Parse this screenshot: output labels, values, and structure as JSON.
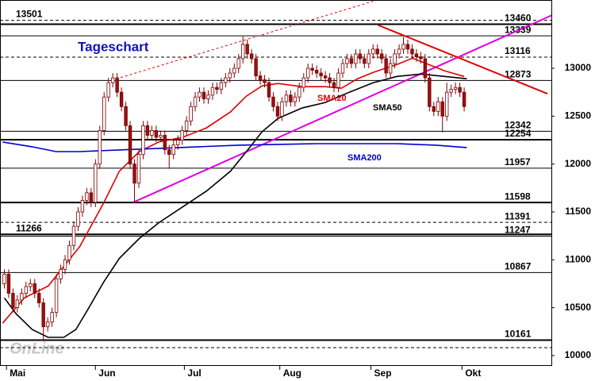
{
  "chart_data": {
    "type": "candlestick",
    "title": "Tageschart",
    "watermark": "OnLine",
    "xlim": [
      -1,
      126.1
    ],
    "xticks": [
      {
        "value": 0.5,
        "label": "Mai"
      },
      {
        "value": 21,
        "label": "Jun"
      },
      {
        "value": 41.5,
        "label": "Jul"
      },
      {
        "value": 63.5,
        "label": "Aug"
      },
      {
        "value": 84.5,
        "label": "Sep"
      },
      {
        "value": 105.5,
        "label": "Okt"
      }
    ],
    "ylim": [
      9900,
      13713
    ],
    "yticks": [
      10000,
      10500,
      11000,
      11500,
      12000,
      12500,
      13000
    ],
    "up_color": "#ffffff",
    "down_color": "#9b1010",
    "outline_color": "#7a0000",
    "open": [
      10750,
      10850,
      10650,
      10500,
      10580,
      10650,
      10720,
      10750,
      10650,
      10550,
      10300,
      10350,
      10450,
      10800,
      10900,
      11000,
      11150,
      11350,
      11500,
      11620,
      11700,
      11600,
      12000,
      12350,
      12700,
      12850,
      12900,
      12750,
      12600,
      12400,
      12000,
      11800,
      12100,
      12400,
      12300,
      12350,
      12280,
      12300,
      12150,
      12100,
      12200,
      12250,
      12350,
      12450,
      12600,
      12700,
      12750,
      12680,
      12720,
      12800,
      12780,
      12850,
      12900,
      12950,
      13000,
      13100,
      13250,
      13150,
      13100,
      12920,
      12880,
      12850,
      12700,
      12600,
      12500,
      12650,
      12720,
      12650,
      12700,
      12800,
      12900,
      13000,
      12980,
      12950,
      12920,
      12900,
      12850,
      12800,
      12950,
      13050,
      13100,
      13050,
      13150,
      13100,
      13050,
      13150,
      13200,
      13150,
      13100,
      12950,
      13050,
      13150,
      13200,
      13250,
      13200,
      13150,
      13120,
      13100,
      12900,
      12600,
      12550,
      12650,
      12500,
      12750,
      12780,
      12800,
      12750
    ],
    "high": [
      10900,
      10900,
      10700,
      10630,
      10700,
      10770,
      10800,
      10800,
      10700,
      10600,
      10400,
      10500,
      10850,
      10950,
      11050,
      11200,
      11400,
      11550,
      11670,
      11750,
      11750,
      12050,
      12400,
      12750,
      12900,
      12950,
      12950,
      12800,
      12650,
      12450,
      12050,
      12150,
      12450,
      12450,
      12400,
      12400,
      12350,
      12350,
      12200,
      12250,
      12300,
      12400,
      12500,
      12650,
      12750,
      12800,
      12800,
      12770,
      12850,
      12850,
      12900,
      12950,
      13000,
      13050,
      13150,
      13330,
      13300,
      13200,
      13150,
      12970,
      12930,
      12900,
      12750,
      12650,
      12700,
      12770,
      12770,
      12750,
      12850,
      12950,
      13050,
      13050,
      13030,
      13000,
      12970,
      12950,
      12900,
      13000,
      13100,
      13150,
      13150,
      13200,
      13200,
      13150,
      13200,
      13250,
      13250,
      13200,
      13150,
      13100,
      13200,
      13250,
      13330,
      13300,
      13250,
      13200,
      13170,
      13150,
      12950,
      12650,
      12700,
      12700,
      12850,
      12830,
      12850,
      12850,
      12800
    ],
    "low": [
      10700,
      10600,
      10450,
      10450,
      10530,
      10600,
      10670,
      10600,
      10500,
      10150,
      10250,
      10300,
      10400,
      10750,
      10850,
      10950,
      11100,
      11300,
      11450,
      11570,
      11550,
      11550,
      11950,
      12300,
      12650,
      12800,
      12700,
      12550,
      12350,
      11950,
      11600,
      11750,
      12050,
      12250,
      12250,
      12230,
      12230,
      12100,
      11950,
      12050,
      12150,
      12200,
      12300,
      12400,
      12550,
      12650,
      12630,
      12630,
      12670,
      12730,
      12730,
      12800,
      12850,
      12900,
      12950,
      13050,
      13100,
      13050,
      12870,
      12830,
      12800,
      12650,
      12550,
      12450,
      12450,
      12600,
      12600,
      12600,
      12650,
      12750,
      12850,
      12930,
      12900,
      12870,
      12850,
      12800,
      12750,
      12750,
      12900,
      13000,
      13000,
      13000,
      13050,
      13000,
      13000,
      13100,
      13100,
      13050,
      12900,
      12900,
      13000,
      13100,
      13150,
      13150,
      13100,
      13070,
      13050,
      12850,
      12550,
      12500,
      12500,
      12330,
      12450,
      12700,
      12730,
      12700,
      12550
    ],
    "close": [
      10850,
      10650,
      10500,
      10580,
      10650,
      10720,
      10750,
      10650,
      10550,
      10300,
      10350,
      10450,
      10800,
      10900,
      11000,
      11150,
      11350,
      11500,
      11620,
      11700,
      11600,
      12000,
      12350,
      12700,
      12850,
      12900,
      12750,
      12600,
      12400,
      12000,
      11800,
      12100,
      12400,
      12300,
      12350,
      12280,
      12300,
      12150,
      12100,
      12200,
      12250,
      12350,
      12450,
      12600,
      12700,
      12750,
      12680,
      12720,
      12800,
      12780,
      12850,
      12900,
      12950,
      13000,
      13100,
      13250,
      13150,
      13100,
      12920,
      12880,
      12850,
      12700,
      12600,
      12500,
      12650,
      12720,
      12650,
      12700,
      12800,
      12900,
      13000,
      12980,
      12950,
      12920,
      12900,
      12850,
      12800,
      12950,
      13050,
      13100,
      13050,
      13150,
      13100,
      13050,
      13150,
      13200,
      13150,
      13100,
      12950,
      13050,
      13150,
      13200,
      13250,
      13200,
      13150,
      13120,
      13100,
      12900,
      12600,
      12550,
      12650,
      12500,
      12750,
      12780,
      12800,
      12750,
      12600
    ],
    "lines": [
      {
        "name": "SMA20",
        "color": "#e00000",
        "x": [
          -0.4,
          4.6,
          10.1,
          17.4,
          22.9,
          26.5,
          31.1,
          35.6,
          41.1,
          46.6,
          52.1,
          55.8,
          59.4,
          63.1,
          68.6,
          74.0,
          77.7,
          81.4,
          85.0,
          90.5,
          94.1,
          97.8,
          101.5,
          106.0
        ],
        "values": [
          10338,
          10602,
          10726,
          11139,
          11594,
          11924,
          12130,
          12230,
          12279,
          12378,
          12543,
          12709,
          12816,
          12841,
          12808,
          12808,
          12791,
          12891,
          12957,
          13039,
          13105,
          13039,
          12973,
          12915
        ]
      },
      {
        "name": "SMA50",
        "color": "#000000",
        "x": [
          0,
          2.7,
          6.4,
          10.1,
          13.7,
          16.5,
          19.2,
          22.9,
          26.5,
          31.1,
          35.6,
          41.1,
          46.6,
          52.1,
          55.8,
          59.4,
          63.1,
          68.6,
          74.0,
          79.5,
          85.0,
          90.5,
          96.0,
          101.5,
          106.6
        ],
        "values": [
          10602,
          10437,
          10272,
          10190,
          10190,
          10272,
          10478,
          10768,
          11015,
          11222,
          11387,
          11552,
          11718,
          11924,
          12130,
          12337,
          12477,
          12585,
          12643,
          12750,
          12849,
          12915,
          12940,
          12915,
          12891
        ]
      },
      {
        "name": "SMA200",
        "color": "#0000d0",
        "x": [
          -0.4,
          6.4,
          11.9,
          17.4,
          26.5,
          35.6,
          44.8,
          53.9,
          63.1,
          72.2,
          81.4,
          90.5,
          99.6,
          106.6
        ],
        "values": [
          12230,
          12180,
          12130,
          12130,
          12147,
          12164,
          12180,
          12197,
          12205,
          12213,
          12213,
          12213,
          12197,
          12172
        ]
      }
    ],
    "trendlines": [
      {
        "color": "#e000e0",
        "style": "solid",
        "x": [
          29.8,
          126.1
        ],
        "values": [
          11602,
          13551
        ]
      },
      {
        "color": "#e00000",
        "style": "dashed",
        "x": [
          24.7,
          85.0
        ],
        "values": [
          12874,
          13700
        ]
      },
      {
        "color": "#e00000",
        "style": "solid",
        "x": [
          86.1,
          125.2
        ],
        "values": [
          13452,
          12734
        ]
      }
    ],
    "levels": [
      {
        "value": 13501,
        "style": "dashed",
        "label_pos": "left"
      },
      {
        "value": 13460,
        "style": "thick",
        "label_pos": "right"
      },
      {
        "value": 13339,
        "style": "solid",
        "label_pos": "right"
      },
      {
        "value": 13116,
        "style": "dashed",
        "label_pos": "right"
      },
      {
        "value": 12873,
        "style": "solid",
        "label_pos": "right"
      },
      {
        "value": 12342,
        "style": "solid",
        "label_pos": "right"
      },
      {
        "value": 12254,
        "style": "thick",
        "label_pos": "right"
      },
      {
        "value": 11957,
        "style": "solid",
        "label_pos": "right"
      },
      {
        "value": 11598,
        "style": "thick",
        "label_pos": "right"
      },
      {
        "value": 11391,
        "style": "dashed",
        "label_pos": "right"
      },
      {
        "value": 11266,
        "style": "thick",
        "label_pos": "left"
      },
      {
        "value": 11247,
        "style": "solid",
        "label_pos": "right"
      },
      {
        "value": 10867,
        "style": "solid",
        "label_pos": "right"
      },
      {
        "value": 10161,
        "style": "thick",
        "label_pos": "right"
      },
      {
        "value": 10082,
        "style": "dashed",
        "label_pos": "none"
      }
    ]
  }
}
